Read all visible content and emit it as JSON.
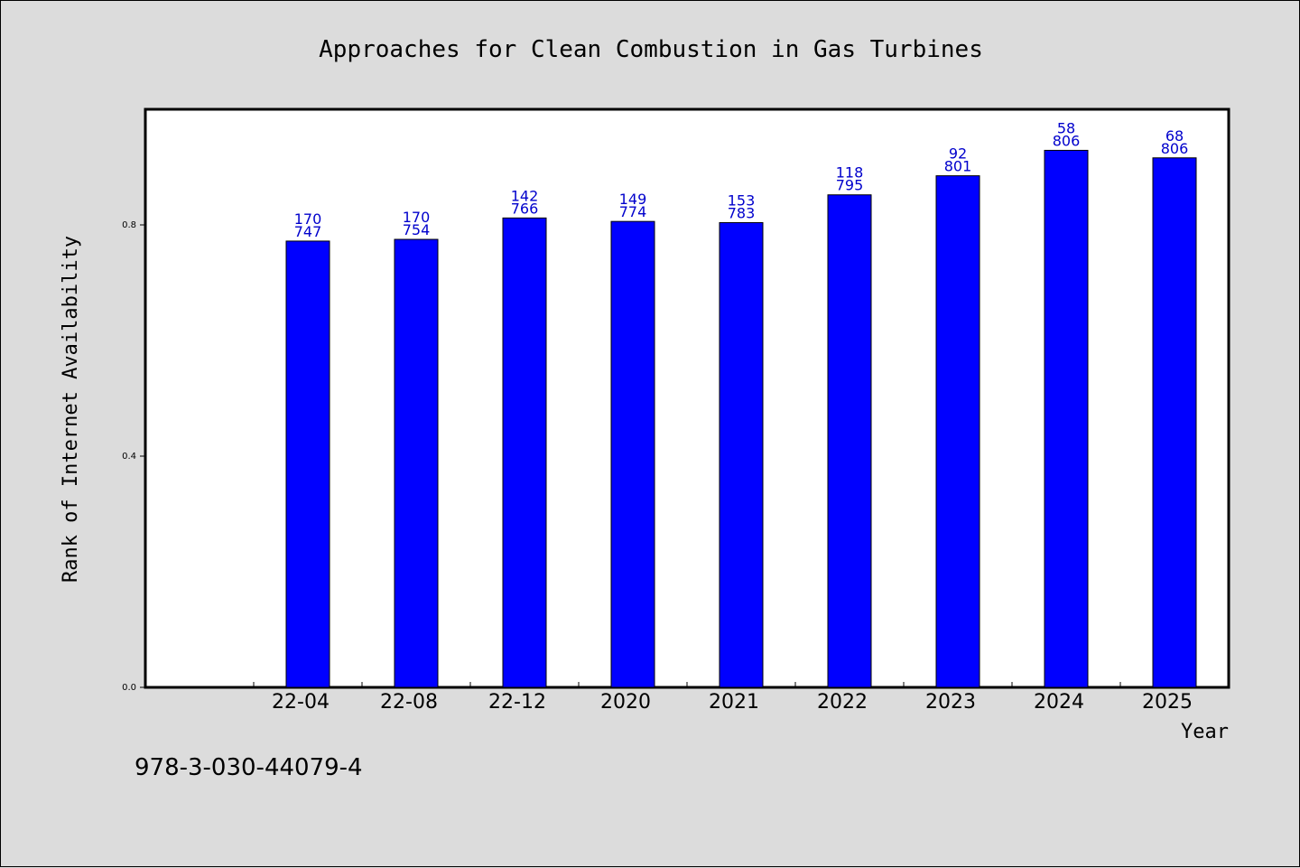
{
  "chart_data": {
    "type": "bar",
    "title": "Approaches for Clean Combustion in Gas Turbines",
    "xlabel": "Year",
    "ylabel": "Rank of Internet Availability",
    "categories": [
      "22-04",
      "22-08",
      "22-12",
      "2020",
      "2021",
      "2022",
      "2023",
      "2024",
      "2025"
    ],
    "values": [
      0.772,
      0.775,
      0.812,
      0.806,
      0.804,
      0.852,
      0.885,
      0.929,
      0.916
    ],
    "label_top": [
      "170",
      "170",
      "142",
      "149",
      "153",
      "118",
      "92",
      "58",
      "68"
    ],
    "label_bottom": [
      "747",
      "754",
      "766",
      "774",
      "783",
      "795",
      "801",
      "806",
      "806"
    ],
    "ylim": [
      0.0,
      1.0
    ],
    "yticks": [
      0.0,
      0.4,
      0.8
    ],
    "ytick_labels": [
      "0.0",
      "0.4",
      "0.8"
    ],
    "bar_color": "#0000ff",
    "label_color": "#0000cc",
    "grid": false,
    "legend": "none"
  },
  "footer": {
    "isbn": "978-3-030-44079-4"
  }
}
